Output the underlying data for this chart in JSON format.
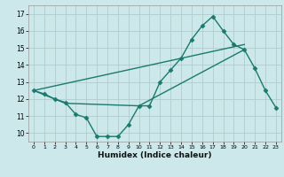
{
  "xlabel": "Humidex (Indice chaleur)",
  "xlim": [
    -0.5,
    23.5
  ],
  "ylim": [
    9.5,
    17.5
  ],
  "yticks": [
    10,
    11,
    12,
    13,
    14,
    15,
    16,
    17
  ],
  "xticks": [
    0,
    1,
    2,
    3,
    4,
    5,
    6,
    7,
    8,
    9,
    10,
    11,
    12,
    13,
    14,
    15,
    16,
    17,
    18,
    19,
    20,
    21,
    22,
    23
  ],
  "bg_color": "#cce8ea",
  "grid_color": "#b0cccc",
  "line_color": "#1a7a6e",
  "lines": [
    {
      "x": [
        0,
        1,
        2,
        3,
        4,
        5,
        6,
        7,
        8,
        9,
        10,
        11,
        12,
        13,
        14,
        15,
        16,
        17,
        18,
        19,
        20,
        21,
        22,
        23
      ],
      "y": [
        12.5,
        12.3,
        12.0,
        11.8,
        11.1,
        10.9,
        9.8,
        9.8,
        9.8,
        10.5,
        11.6,
        11.6,
        13.0,
        13.7,
        14.4,
        15.5,
        16.3,
        16.85,
        16.0,
        15.2,
        14.9,
        13.8,
        12.5,
        11.5
      ],
      "marker": "D",
      "markersize": 2.5,
      "linewidth": 1.0
    },
    {
      "x": [
        0,
        3,
        10,
        20
      ],
      "y": [
        12.5,
        11.75,
        11.6,
        14.9
      ],
      "marker": null,
      "linewidth": 1.0
    },
    {
      "x": [
        0,
        20
      ],
      "y": [
        12.5,
        15.2
      ],
      "marker": null,
      "linewidth": 1.0
    }
  ]
}
